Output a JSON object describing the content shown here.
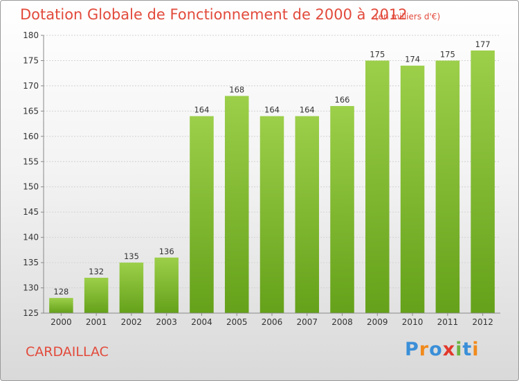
{
  "chart_data": {
    "type": "bar",
    "title": "Dotation Globale de Fonctionnement de 2000 à 2012",
    "subtitle": "(en milliers d'€)",
    "xlabel": "",
    "ylabel": "",
    "ylim": [
      125,
      180
    ],
    "yticks": [
      125,
      130,
      135,
      140,
      145,
      150,
      155,
      160,
      165,
      170,
      175,
      180
    ],
    "grid": true,
    "categories": [
      "2000",
      "2001",
      "2002",
      "2003",
      "2004",
      "2005",
      "2006",
      "2007",
      "2008",
      "2009",
      "2010",
      "2011",
      "2012"
    ],
    "values": [
      128,
      132,
      135,
      136,
      164,
      168,
      164,
      164,
      166,
      175,
      174,
      175,
      177
    ]
  },
  "footer": {
    "commune": "CARDAILLAC",
    "logo_text": "Proxiti"
  },
  "colors": {
    "title": "#e24a3b",
    "bar_light": "#9ccf4a",
    "bar_dark": "#65a11a",
    "logo": [
      "#3a8fd8",
      "#f08a1c",
      "#3a8fd8",
      "#e2382b",
      "#6cb33f",
      "#3a8fd8",
      "#f08a1c"
    ]
  }
}
